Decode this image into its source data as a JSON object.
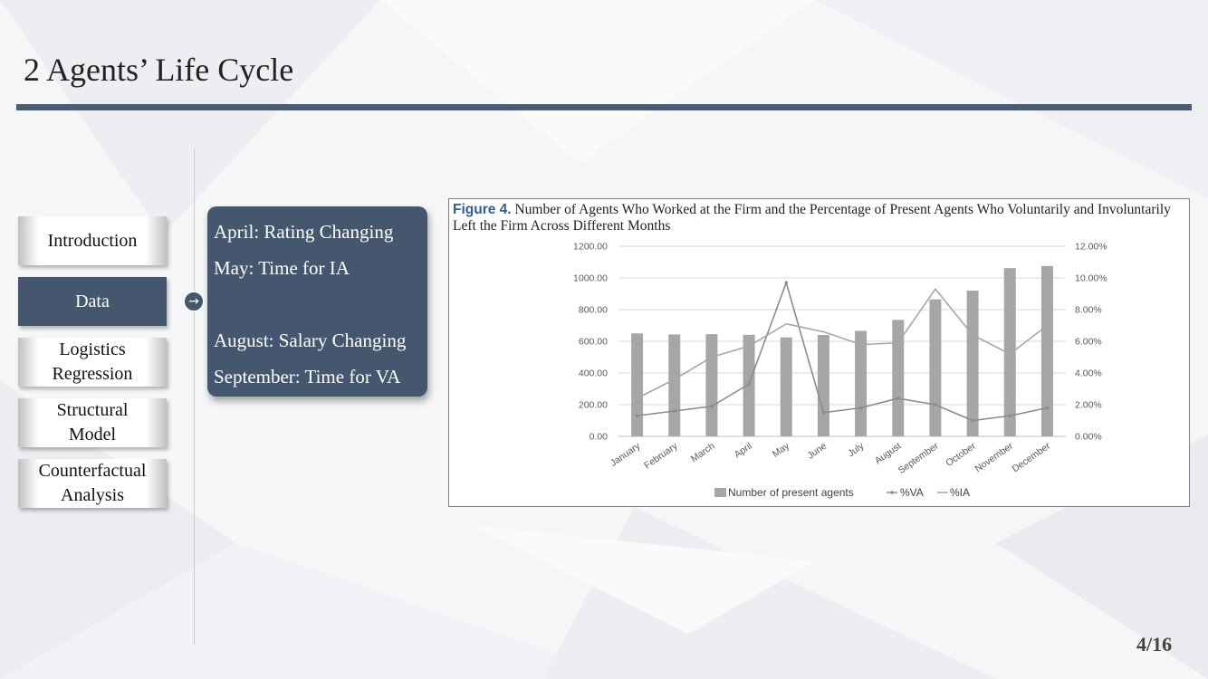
{
  "slide": {
    "title": "2 Agents’ Life Cycle",
    "page": "4/16"
  },
  "nav": {
    "items": [
      {
        "label": "Introduction"
      },
      {
        "label": "Data"
      },
      {
        "label": "Logistics\nRegression"
      },
      {
        "label": "Structural\nModel"
      },
      {
        "label": "Counterfactual\nAnalysis"
      }
    ],
    "active_index": 1,
    "arrow_icon": "arrow-right-icon"
  },
  "notes": {
    "lines": [
      "April: Rating Changing",
      "May:  Time for IA",
      "August: Salary Changing",
      "September: Time for VA"
    ]
  },
  "figure": {
    "label": "Figure 4.",
    "caption": "Number of Agents Who Worked at the Firm and the Percentage of Present Agents Who Voluntarily and Involuntarily Left the Firm Across Different Months"
  },
  "chart_data": {
    "type": "bar",
    "categories": [
      "January",
      "February",
      "March",
      "April",
      "May",
      "June",
      "July",
      "August",
      "September",
      "October",
      "November",
      "December"
    ],
    "series": [
      {
        "name": "Number of present agents",
        "type": "bar",
        "axis": "left",
        "values": [
          650,
          643,
          645,
          641,
          625,
          640,
          666,
          735,
          865,
          920,
          1062,
          1075
        ]
      },
      {
        "name": "%VA",
        "type": "line",
        "axis": "right",
        "values": [
          1.3,
          1.6,
          1.9,
          3.3,
          9.7,
          1.5,
          1.8,
          2.4,
          2.0,
          1.0,
          1.3,
          1.8
        ]
      },
      {
        "name": "%IA",
        "type": "line",
        "axis": "right",
        "values": [
          2.4,
          3.6,
          5.0,
          5.7,
          7.1,
          6.6,
          5.8,
          5.9,
          9.3,
          6.4,
          5.2,
          7.0
        ]
      }
    ],
    "y_left": {
      "min": 0,
      "max": 1200,
      "step": 200,
      "ticks": [
        "0.00",
        "200.00",
        "400.00",
        "600.00",
        "800.00",
        "1000.00",
        "1200.00"
      ]
    },
    "y_right": {
      "min": 0,
      "max": 12,
      "step": 2,
      "ticks": [
        "0.00%",
        "2.00%",
        "4.00%",
        "6.00%",
        "8.00%",
        "10.00%",
        "12.00%"
      ]
    },
    "grid": true,
    "legend_position": "bottom",
    "colors": {
      "bars": "#a6a6a6",
      "va": "#8c8c8c",
      "ia": "#a6a6a6",
      "grid": "#d9d9d9",
      "axis": "#bfbfbf"
    }
  }
}
